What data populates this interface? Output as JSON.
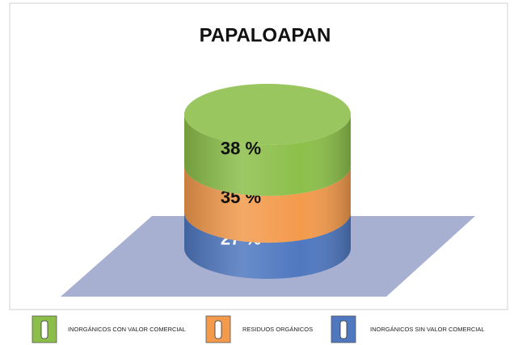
{
  "chart_data": {
    "type": "cylinder",
    "title": "PAPALOAPAN",
    "series": [
      {
        "name": "INORGÁNICOS SIN VALOR COMERCIAL",
        "color": "#4f78c0",
        "label_color": "#ffffff",
        "values": [
          27
        ],
        "value_labels": [
          "27 %"
        ]
      },
      {
        "name": "RESIDUOS ORGÁNICOS",
        "color": "#f39a4c",
        "label_color": "#111111",
        "values": [
          35
        ],
        "value_labels": [
          "35 %"
        ]
      },
      {
        "name": "INORGÁNICOS CON VALOR COMERCIAL",
        "color": "#8cbf4a",
        "label_color": "#111111",
        "values": [
          38
        ],
        "value_labels": [
          "38 %"
        ]
      }
    ],
    "legend": "bottom"
  }
}
